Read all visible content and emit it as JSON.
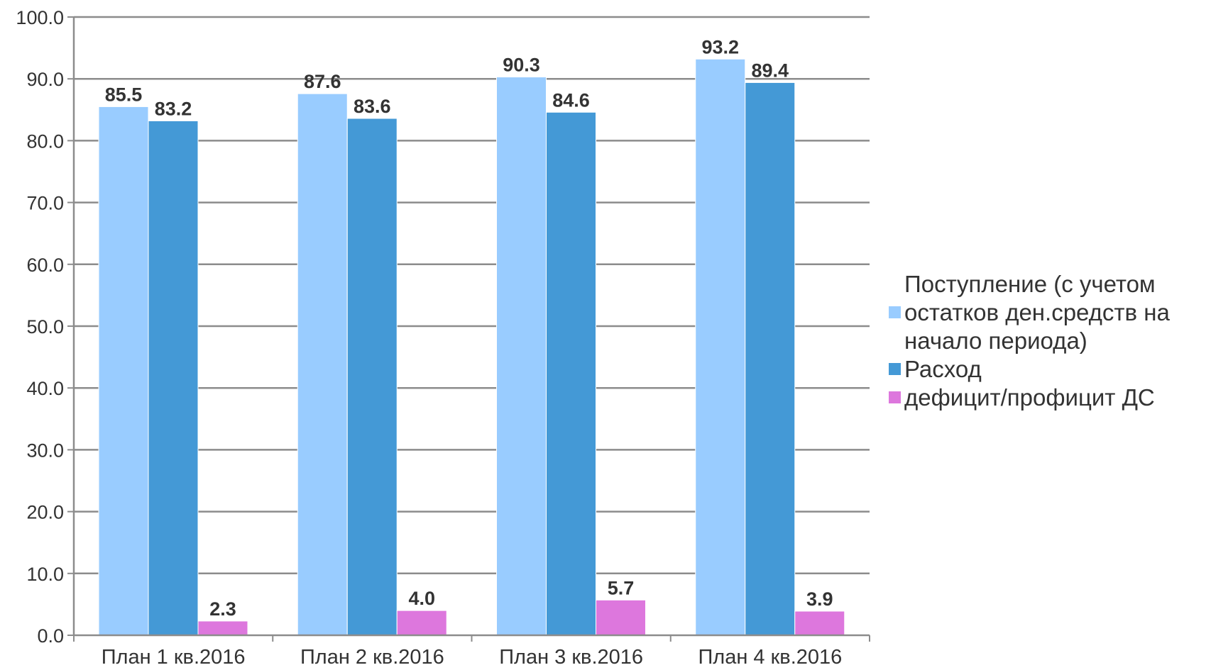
{
  "chart_data": {
    "type": "bar",
    "categories": [
      "План 1 кв.2016",
      "План 2 кв.2016",
      "План 3 кв.2016",
      "План 4 кв.2016"
    ],
    "series": [
      {
        "name": "Поступление (с учетом остатков ден.средств на начало периода)",
        "legend_lines": [
          "Поступление (с учетом",
          "остатков ден.средств на",
          "начало периода)"
        ],
        "values": [
          85.5,
          87.6,
          90.3,
          93.2
        ],
        "labels": [
          "85.5",
          "87.6",
          "90.3",
          "93.2"
        ],
        "color": "#99ccff"
      },
      {
        "name": "Расход",
        "legend_lines": [
          "Расход"
        ],
        "values": [
          83.2,
          83.6,
          84.6,
          89.4
        ],
        "labels": [
          "83.2",
          "83.6",
          "84.6",
          "89.4"
        ],
        "color": "#4499d6"
      },
      {
        "name": "дефицит/профицит ДС",
        "legend_lines": [
          "дефицит/профицит ДС"
        ],
        "values": [
          2.3,
          4.0,
          5.7,
          3.9
        ],
        "labels": [
          "2.3",
          "4.0",
          "5.7",
          "3.9"
        ],
        "color": "#dd77dd"
      }
    ],
    "title": "",
    "xlabel": "",
    "ylabel": "",
    "ylim": [
      0,
      100
    ],
    "yticks": [
      0,
      10,
      20,
      30,
      40,
      50,
      60,
      70,
      80,
      90,
      100
    ],
    "ytick_labels": [
      "0.0",
      "10.0",
      "20.0",
      "30.0",
      "40.0",
      "50.0",
      "60.0",
      "70.0",
      "80.0",
      "90.0",
      "100.0"
    ],
    "grid": true,
    "legend_position": "right"
  }
}
